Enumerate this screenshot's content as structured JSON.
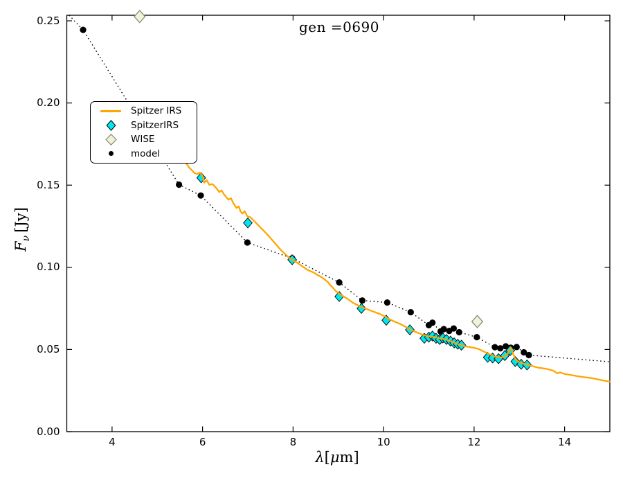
{
  "figure": {
    "background": "#ffffff",
    "title": "gen =0690",
    "ylabel_parts": {
      "main": "F",
      "sub": "ν",
      "unit": "[Jy]"
    },
    "xlabel_parts": {
      "lambda": "λ",
      "open": "[",
      "mu": "μ",
      "close": "m]"
    }
  },
  "chart_data": {
    "type": "line",
    "title": "gen =0690",
    "xlabel": "λ[μm]",
    "ylabel": "Fν [Jy]",
    "xlim": [
      3,
      15
    ],
    "ylim": [
      0,
      0.2534
    ],
    "x_ticks": [
      4,
      6,
      8,
      10,
      12,
      14
    ],
    "x_tick_labels": [
      "4",
      "6",
      "8",
      "10",
      "12",
      "14"
    ],
    "y_ticks": [
      0,
      0.05,
      0.1,
      0.15,
      0.2,
      0.25
    ],
    "y_tick_labels": [
      "0.00",
      "0.05",
      "0.10",
      "0.15",
      "0.20",
      "0.25"
    ],
    "grid": false,
    "legend_position": "upper left",
    "series": [
      {
        "name": "Spitzer IRS",
        "type": "line",
        "color": "#FFA500",
        "points": [
          [
            5.56,
            0.1645
          ],
          [
            5.6,
            0.1662
          ],
          [
            5.65,
            0.163
          ],
          [
            5.7,
            0.1608
          ],
          [
            5.76,
            0.1592
          ],
          [
            5.82,
            0.1574
          ],
          [
            5.88,
            0.1567
          ],
          [
            5.94,
            0.1577
          ],
          [
            5.99,
            0.1561
          ],
          [
            6.04,
            0.1515
          ],
          [
            6.09,
            0.1531
          ],
          [
            6.15,
            0.1502
          ],
          [
            6.22,
            0.1507
          ],
          [
            6.31,
            0.148
          ],
          [
            6.37,
            0.1458
          ],
          [
            6.42,
            0.1468
          ],
          [
            6.47,
            0.1445
          ],
          [
            6.57,
            0.1412
          ],
          [
            6.63,
            0.142
          ],
          [
            6.68,
            0.1391
          ],
          [
            6.75,
            0.1361
          ],
          [
            6.8,
            0.1371
          ],
          [
            6.84,
            0.134
          ],
          [
            6.88,
            0.1327
          ],
          [
            6.93,
            0.1342
          ],
          [
            6.99,
            0.1311
          ],
          [
            7.06,
            0.1304
          ],
          [
            7.15,
            0.1279
          ],
          [
            7.25,
            0.1251
          ],
          [
            7.35,
            0.1223
          ],
          [
            7.45,
            0.1194
          ],
          [
            7.55,
            0.1162
          ],
          [
            7.64,
            0.1134
          ],
          [
            7.72,
            0.1108
          ],
          [
            7.8,
            0.1087
          ],
          [
            7.9,
            0.1061
          ],
          [
            7.98,
            0.1046
          ],
          [
            8.08,
            0.103
          ],
          [
            8.16,
            0.1015
          ],
          [
            8.24,
            0.0999
          ],
          [
            8.31,
            0.0986
          ],
          [
            8.38,
            0.0977
          ],
          [
            8.46,
            0.0968
          ],
          [
            8.53,
            0.0955
          ],
          [
            8.61,
            0.0943
          ],
          [
            8.69,
            0.0928
          ],
          [
            8.77,
            0.091
          ],
          [
            8.83,
            0.0889
          ],
          [
            8.88,
            0.0876
          ],
          [
            8.93,
            0.0859
          ],
          [
            8.98,
            0.0847
          ],
          [
            9.04,
            0.0837
          ],
          [
            9.1,
            0.0825
          ],
          [
            9.18,
            0.0813
          ],
          [
            9.25,
            0.0799
          ],
          [
            9.33,
            0.0783
          ],
          [
            9.41,
            0.0772
          ],
          [
            9.48,
            0.0762
          ],
          [
            9.56,
            0.0753
          ],
          [
            9.64,
            0.0745
          ],
          [
            9.72,
            0.0736
          ],
          [
            9.79,
            0.0729
          ],
          [
            9.87,
            0.0721
          ],
          [
            9.94,
            0.0713
          ],
          [
            10.02,
            0.0702
          ],
          [
            10.1,
            0.0689
          ],
          [
            10.2,
            0.0675
          ],
          [
            10.3,
            0.0663
          ],
          [
            10.4,
            0.0651
          ],
          [
            10.5,
            0.0636
          ],
          [
            10.6,
            0.0619
          ],
          [
            10.7,
            0.0608
          ],
          [
            10.8,
            0.0597
          ],
          [
            10.9,
            0.0587
          ],
          [
            11.0,
            0.0579
          ],
          [
            11.1,
            0.0577
          ],
          [
            11.2,
            0.0571
          ],
          [
            11.3,
            0.0565
          ],
          [
            11.4,
            0.0559
          ],
          [
            11.5,
            0.055
          ],
          [
            11.6,
            0.0537
          ],
          [
            11.7,
            0.0527
          ],
          [
            11.8,
            0.052
          ],
          [
            11.9,
            0.0515
          ],
          [
            12.0,
            0.051
          ],
          [
            12.1,
            0.0503
          ],
          [
            12.2,
            0.0489
          ],
          [
            12.3,
            0.0477
          ],
          [
            12.4,
            0.0463
          ],
          [
            12.5,
            0.0455
          ],
          [
            12.6,
            0.0451
          ],
          [
            12.68,
            0.0459
          ],
          [
            12.74,
            0.0474
          ],
          [
            12.79,
            0.0502
          ],
          [
            12.82,
            0.0511
          ],
          [
            12.86,
            0.0475
          ],
          [
            12.92,
            0.0439
          ],
          [
            13.0,
            0.0423
          ],
          [
            13.1,
            0.0413
          ],
          [
            13.2,
            0.0406
          ],
          [
            13.3,
            0.0398
          ],
          [
            13.42,
            0.0389
          ],
          [
            13.55,
            0.0384
          ],
          [
            13.65,
            0.0379
          ],
          [
            13.75,
            0.0371
          ],
          [
            13.84,
            0.0355
          ],
          [
            13.9,
            0.0361
          ],
          [
            14.0,
            0.0351
          ],
          [
            14.15,
            0.0344
          ],
          [
            14.3,
            0.0337
          ],
          [
            14.45,
            0.0331
          ],
          [
            14.6,
            0.0326
          ],
          [
            14.75,
            0.0317
          ],
          [
            14.9,
            0.0309
          ],
          [
            15.0,
            0.0305
          ]
        ]
      },
      {
        "name": "SpitzerIRS",
        "type": "scatter",
        "marker": "filled-diamond",
        "fill": "#00E5EE",
        "edge": "#000000",
        "points": [
          [
            5.97,
            0.1545
          ],
          [
            7.0,
            0.127
          ],
          [
            7.98,
            0.1046
          ],
          [
            9.02,
            0.0822
          ],
          [
            9.51,
            0.075
          ],
          [
            10.06,
            0.0678
          ],
          [
            10.58,
            0.062
          ],
          [
            10.9,
            0.0568
          ],
          [
            11.0,
            0.0575
          ],
          [
            11.08,
            0.0582
          ],
          [
            11.16,
            0.0568
          ],
          [
            11.24,
            0.0561
          ],
          [
            11.31,
            0.057
          ],
          [
            11.39,
            0.0561
          ],
          [
            11.48,
            0.0551
          ],
          [
            11.56,
            0.054
          ],
          [
            11.64,
            0.0532
          ],
          [
            11.72,
            0.0526
          ],
          [
            12.3,
            0.0452
          ],
          [
            12.41,
            0.0448
          ],
          [
            12.54,
            0.0444
          ],
          [
            12.68,
            0.0463
          ],
          [
            12.8,
            0.0494
          ],
          [
            12.91,
            0.0427
          ],
          [
            13.04,
            0.041
          ],
          [
            13.17,
            0.0406
          ]
        ]
      },
      {
        "name": "WISE",
        "type": "scatter",
        "marker": "open-diamond",
        "fill": "#F2F2DC",
        "edge": "#8A8A72",
        "points": [
          [
            4.61,
            0.2526
          ],
          [
            12.07,
            0.067
          ]
        ]
      },
      {
        "name": "model",
        "type": "scatter-dotted-line",
        "marker": "dot",
        "color": "#000000",
        "line_start": [
          3.05,
          0.2534
        ],
        "line_end": [
          15.0,
          0.0425
        ],
        "points": [
          [
            3.36,
            0.2445
          ],
          [
            5.48,
            0.1503
          ],
          [
            5.96,
            0.1437
          ],
          [
            6.99,
            0.1151
          ],
          [
            7.98,
            0.1055
          ],
          [
            9.02,
            0.0908
          ],
          [
            9.53,
            0.0798
          ],
          [
            10.08,
            0.0786
          ],
          [
            10.6,
            0.0727
          ],
          [
            11.0,
            0.0648
          ],
          [
            11.08,
            0.0663
          ],
          [
            11.26,
            0.061
          ],
          [
            11.33,
            0.0624
          ],
          [
            11.45,
            0.0613
          ],
          [
            11.55,
            0.0628
          ],
          [
            11.67,
            0.0605
          ],
          [
            12.06,
            0.0575
          ],
          [
            12.46,
            0.0514
          ],
          [
            12.58,
            0.0507
          ],
          [
            12.7,
            0.0519
          ],
          [
            12.81,
            0.0511
          ],
          [
            12.94,
            0.0515
          ],
          [
            13.1,
            0.0483
          ],
          [
            13.21,
            0.0466
          ]
        ]
      }
    ]
  }
}
